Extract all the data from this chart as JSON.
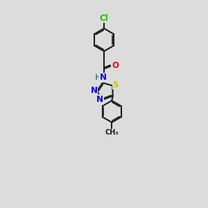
{
  "background_color": "#dcdcdc",
  "bond_color": "#1a1a1a",
  "bond_width": 1.5,
  "atom_colors": {
    "Cl": "#22bb00",
    "O": "#ff0000",
    "N": "#0000ee",
    "S": "#cccc00",
    "H": "#558888",
    "C": "#1a1a1a"
  },
  "fs": 8.5,
  "figsize": [
    3.0,
    3.0
  ],
  "dpi": 100
}
